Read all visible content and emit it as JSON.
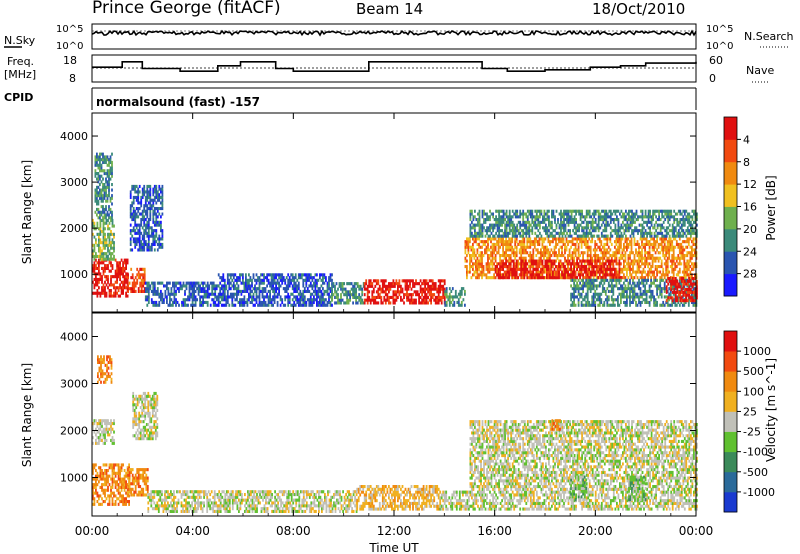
{
  "header": {
    "site_title": "Prince George (fitACF)",
    "beam": "Beam 14",
    "date": "18/Oct/2010"
  },
  "noise_panel": {
    "left_label": "N.Sky",
    "right_label": "N.Search",
    "tick_top": "10^5",
    "tick_bottom": "10^0"
  },
  "freq_panel": {
    "left_label_line1": "Freq.",
    "left_label_line2": "[MHz]",
    "left_tick_top": "18",
    "left_tick_bottom": "8",
    "right_label": "Nave",
    "right_tick_top": "60",
    "right_tick_bottom": "0"
  },
  "cpid_panel": {
    "label": "CPID",
    "text": "normalsound (fast) -157"
  },
  "chart_data": [
    {
      "type": "heatmap",
      "panel": "power",
      "ylabel": "Slant Range [km]",
      "xlabel": "",
      "x_ticks": [
        "00:00",
        "04:00",
        "08:00",
        "12:00",
        "16:00",
        "20:00",
        "00:00"
      ],
      "x_tick_hours": [
        0,
        4,
        8,
        12,
        16,
        20,
        24
      ],
      "xlim": [
        0,
        24
      ],
      "ylim": [
        180,
        4500
      ],
      "y_ticks": [
        1000,
        2000,
        3000,
        4000
      ],
      "colorbar": {
        "label": "Power [dB]",
        "ticks": [
          "4",
          "8",
          "12",
          "16",
          "20",
          "24",
          "28"
        ],
        "colors": [
          "#1a1aff",
          "#2a55b0",
          "#3b8a7a",
          "#6fb04e",
          "#f0c020",
          "#f08a10",
          "#f24a10",
          "#e01010"
        ]
      },
      "regions": [
        {
          "t0": 0.0,
          "t1": 1.4,
          "r0": 500,
          "r1": 1300,
          "level": 7
        },
        {
          "t0": 0.0,
          "t1": 0.9,
          "r0": 1300,
          "r1": 2200,
          "level": 3
        },
        {
          "t0": 0.1,
          "t1": 0.8,
          "r0": 2200,
          "r1": 3600,
          "level": 2
        },
        {
          "t0": 1.4,
          "t1": 2.1,
          "r0": 600,
          "r1": 1100,
          "level": 6
        },
        {
          "t0": 1.5,
          "t1": 2.8,
          "r0": 1500,
          "r1": 2900,
          "level": 1
        },
        {
          "t0": 2.1,
          "t1": 5.0,
          "r0": 300,
          "r1": 800,
          "level": 1
        },
        {
          "t0": 5.0,
          "t1": 9.5,
          "r0": 300,
          "r1": 1000,
          "level": 1
        },
        {
          "t0": 9.5,
          "t1": 10.8,
          "r0": 350,
          "r1": 800,
          "level": 2
        },
        {
          "t0": 10.8,
          "t1": 14.0,
          "r0": 350,
          "r1": 850,
          "level": 7
        },
        {
          "t0": 14.0,
          "t1": 14.8,
          "r0": 300,
          "r1": 700,
          "level": 2
        },
        {
          "t0": 14.8,
          "t1": 24.0,
          "r0": 900,
          "r1": 1800,
          "level": 5
        },
        {
          "t0": 15.0,
          "t1": 24.0,
          "r0": 1800,
          "r1": 2400,
          "level": 2
        },
        {
          "t0": 16.0,
          "t1": 21.0,
          "r0": 900,
          "r1": 1300,
          "level": 7
        },
        {
          "t0": 19.0,
          "t1": 24.0,
          "r0": 300,
          "r1": 900,
          "level": 2
        },
        {
          "t0": 22.8,
          "t1": 24.0,
          "r0": 400,
          "r1": 900,
          "level": 7
        }
      ]
    },
    {
      "type": "heatmap",
      "panel": "velocity",
      "ylabel": "Slant Range [km]",
      "xlabel": "Time UT",
      "x_ticks": [
        "00:00",
        "04:00",
        "08:00",
        "12:00",
        "16:00",
        "20:00",
        "00:00"
      ],
      "x_tick_hours": [
        0,
        4,
        8,
        12,
        16,
        20,
        24
      ],
      "xlim": [
        0,
        24
      ],
      "ylim": [
        180,
        4500
      ],
      "y_ticks": [
        1000,
        2000,
        3000,
        4000
      ],
      "colorbar": {
        "label": "Velocity [m s^-1]",
        "ticks": [
          "1000",
          "500",
          "100",
          "25",
          "-25",
          "-100",
          "-500",
          "-1000"
        ],
        "colors": [
          "#1a3ad0",
          "#2a6a9a",
          "#3b8a5a",
          "#60c030",
          "#c0c0b8",
          "#f0b020",
          "#f08a10",
          "#f24a10",
          "#e01010"
        ]
      },
      "regions": [
        {
          "t0": 0.0,
          "t1": 1.5,
          "r0": 400,
          "r1": 1300,
          "level": 6
        },
        {
          "t0": 0.0,
          "t1": 0.9,
          "r0": 1700,
          "r1": 2200,
          "level": 4
        },
        {
          "t0": 0.2,
          "t1": 0.8,
          "r0": 3000,
          "r1": 3600,
          "level": 6
        },
        {
          "t0": 1.4,
          "t1": 2.2,
          "r0": 600,
          "r1": 1200,
          "level": 6
        },
        {
          "t0": 1.6,
          "t1": 2.6,
          "r0": 1800,
          "r1": 2800,
          "level": 4
        },
        {
          "t0": 2.2,
          "t1": 10.5,
          "r0": 250,
          "r1": 700,
          "level": 4
        },
        {
          "t0": 10.5,
          "t1": 13.8,
          "r0": 300,
          "r1": 800,
          "level": 5
        },
        {
          "t0": 13.8,
          "t1": 15.0,
          "r0": 300,
          "r1": 700,
          "level": 4
        },
        {
          "t0": 15.0,
          "t1": 24.0,
          "r0": 300,
          "r1": 2200,
          "level": 4
        },
        {
          "t0": 19.0,
          "t1": 19.6,
          "r0": 500,
          "r1": 1000,
          "level": 3
        },
        {
          "t0": 21.3,
          "t1": 22.0,
          "r0": 500,
          "r1": 1000,
          "level": 3
        },
        {
          "t0": 18.2,
          "t1": 18.6,
          "r0": 2000,
          "r1": 2200,
          "level": 6
        }
      ]
    },
    {
      "type": "line",
      "panel": "frequency",
      "ylim": [
        8,
        18
      ],
      "x": [
        0,
        1.2,
        2.0,
        3.5,
        4.0,
        5.0,
        5.9,
        7.3,
        8.0,
        11.0,
        14.5,
        15.5,
        16.5,
        18.0,
        19.8,
        21.0,
        22.0,
        24.0
      ],
      "values": [
        13.5,
        15.5,
        13.0,
        12.0,
        12.0,
        14.0,
        15.5,
        13.0,
        12.0,
        15.5,
        15.5,
        13.0,
        12.0,
        12.5,
        13.5,
        14.0,
        15.0,
        15.5
      ]
    }
  ]
}
